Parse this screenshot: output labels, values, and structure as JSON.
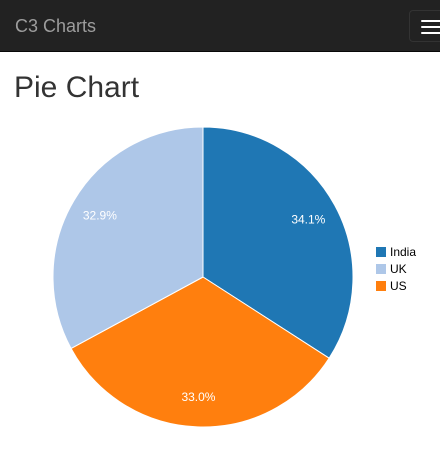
{
  "navbar": {
    "brand": "C3 Charts",
    "menu_icon": "hamburger-menu-icon"
  },
  "page": {
    "title": "Pie Chart"
  },
  "colors": {
    "navbar_bg": "#222222",
    "India": "#1f77b4",
    "UK": "#aec7e8",
    "US": "#ff7f0e"
  },
  "chart_data": {
    "type": "pie",
    "categories": [
      "India",
      "UK",
      "US"
    ],
    "values": [
      34.1,
      32.9,
      33.0
    ],
    "labels": [
      "34.1%",
      "32.9%",
      "33.0%"
    ],
    "colors": [
      "#1f77b4",
      "#aec7e8",
      "#ff7f0e"
    ],
    "slice_order": [
      "India",
      "US",
      "UK"
    ],
    "legend": {
      "position": "right",
      "entries": [
        "India",
        "UK",
        "US"
      ]
    }
  }
}
